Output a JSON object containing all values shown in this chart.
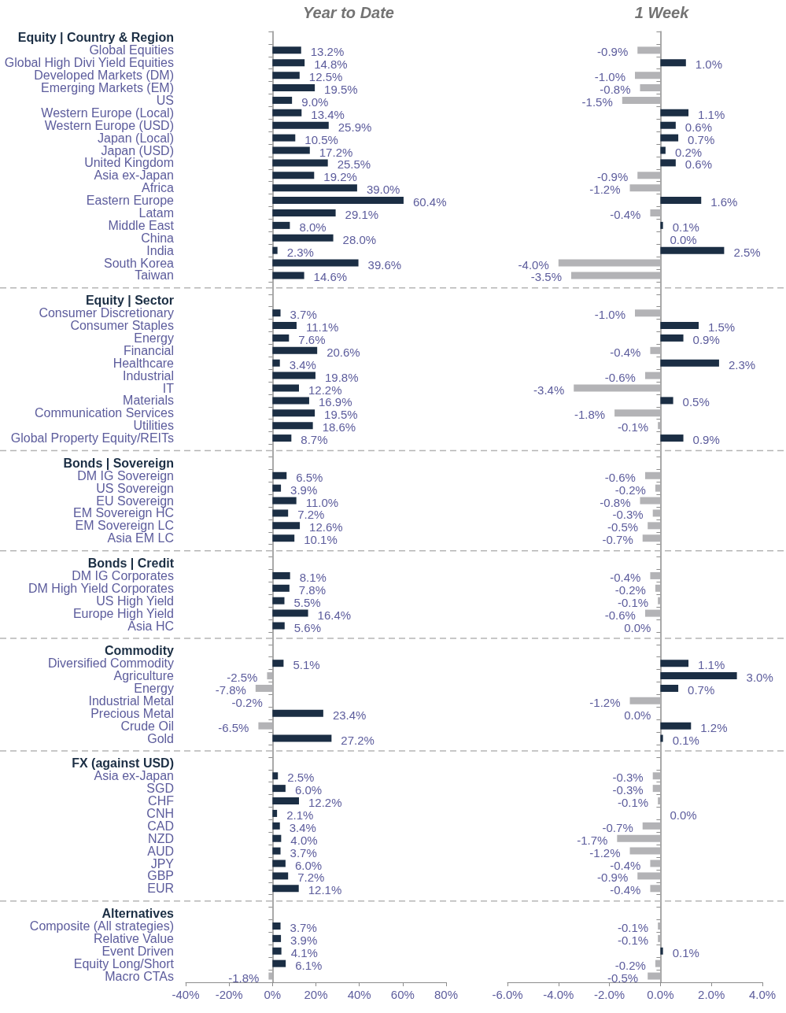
{
  "chart_data": [
    {
      "type": "bar",
      "orientation": "horizontal",
      "title": "Year to Date",
      "categories": [
        "Equity | Country & Region",
        "Global Equities",
        "Global High Divi Yield Equities",
        "Developed Markets (DM)",
        "Emerging Markets (EM)",
        "US",
        "Western Europe (Local)",
        "Western Europe (USD)",
        "Japan (Local)",
        "Japan (USD)",
        "United Kingdom",
        "Asia ex-Japan",
        "Africa",
        "Eastern Europe",
        "Latam",
        "Middle East",
        "China",
        "India",
        "South Korea",
        "Taiwan",
        null,
        "Equity | Sector",
        "Consumer Discretionary",
        "Consumer Staples",
        "Energy",
        "Financial",
        "Healthcare",
        "Industrial",
        "IT",
        "Materials",
        "Communication Services",
        "Utilities",
        "Global Property Equity/REITs",
        null,
        "Bonds | Sovereign",
        "DM IG Sovereign",
        "US Sovereign",
        "EU Sovereign",
        "EM Sovereign HC",
        "EM Sovereign LC",
        "Asia EM LC",
        null,
        "Bonds | Credit",
        "DM IG Corporates",
        "DM High Yield Corporates",
        "US High Yield",
        "Europe High Yield",
        "Asia HC",
        null,
        "Commodity",
        "Diversified Commodity",
        "Agriculture",
        "Energy",
        "Industrial Metal",
        "Precious Metal",
        "Crude Oil",
        "Gold",
        null,
        "FX (against USD)",
        "Asia ex-Japan",
        "SGD",
        "CHF",
        "CNH",
        "CAD",
        "NZD",
        "AUD",
        "JPY",
        "GBP",
        "EUR",
        null,
        "Alternatives",
        "Composite (All strategies)",
        "Relative Value",
        "Event Driven",
        "Equity Long/Short",
        "Macro CTAs"
      ],
      "values": [
        null,
        13.2,
        14.8,
        12.5,
        19.5,
        9.0,
        13.4,
        25.9,
        10.5,
        17.2,
        25.5,
        19.2,
        39.0,
        60.4,
        29.1,
        8.0,
        28.0,
        2.3,
        39.6,
        14.6,
        null,
        null,
        3.7,
        11.1,
        7.6,
        20.6,
        3.4,
        19.8,
        12.2,
        16.9,
        19.5,
        18.6,
        8.7,
        null,
        null,
        6.5,
        3.9,
        11.0,
        7.2,
        12.6,
        10.1,
        null,
        null,
        8.1,
        7.8,
        5.5,
        16.4,
        5.6,
        null,
        null,
        5.1,
        -2.5,
        -7.8,
        -0.2,
        23.4,
        -6.5,
        27.2,
        null,
        null,
        2.5,
        6.0,
        12.2,
        2.1,
        3.4,
        4.0,
        3.7,
        6.0,
        7.2,
        12.1,
        null,
        null,
        3.7,
        3.9,
        4.1,
        6.1,
        -1.8
      ],
      "colors": [
        null,
        "#1b2e44",
        "#1b2e44",
        "#1b2e44",
        "#1b2e44",
        "#1b2e44",
        "#1b2e44",
        "#1b2e44",
        "#1b2e44",
        "#1b2e44",
        "#1b2e44",
        "#1b2e44",
        "#1b2e44",
        "#1b2e44",
        "#1b2e44",
        "#1b2e44",
        "#1b2e44",
        "#1b2e44",
        "#1b2e44",
        "#1b2e44",
        null,
        null,
        "#1b2e44",
        "#1b2e44",
        "#1b2e44",
        "#1b2e44",
        "#1b2e44",
        "#1b2e44",
        "#1b2e44",
        "#1b2e44",
        "#1b2e44",
        "#1b2e44",
        "#1b2e44",
        null,
        null,
        "#1b2e44",
        "#1b2e44",
        "#1b2e44",
        "#1b2e44",
        "#1b2e44",
        "#1b2e44",
        null,
        null,
        "#1b2e44",
        "#1b2e44",
        "#1b2e44",
        "#1b2e44",
        "#1b2e44",
        null,
        null,
        "#1b2e44",
        "#b3b3b6",
        "#b3b3b6",
        "#b3b3b6",
        "#1b2e44",
        "#b3b3b6",
        "#1b2e44",
        null,
        null,
        "#1b2e44",
        "#1b2e44",
        "#1b2e44",
        "#1b2e44",
        "#1b2e44",
        "#1b2e44",
        "#1b2e44",
        "#1b2e44",
        "#1b2e44",
        "#1b2e44",
        null,
        null,
        "#1b2e44",
        "#1b2e44",
        "#1b2e44",
        "#1b2e44",
        "#b3b3b6"
      ],
      "value_labels": [
        null,
        "13.2%",
        "14.8%",
        "12.5%",
        "19.5%",
        "9.0%",
        "13.4%",
        "25.9%",
        "10.5%",
        "17.2%",
        "25.5%",
        "19.2%",
        "39.0%",
        "60.4%",
        "29.1%",
        "8.0%",
        "28.0%",
        "2.3%",
        "39.6%",
        "14.6%",
        null,
        null,
        "3.7%",
        "11.1%",
        "7.6%",
        "20.6%",
        "3.4%",
        "19.8%",
        "12.2%",
        "16.9%",
        "19.5%",
        "18.6%",
        "8.7%",
        null,
        null,
        "6.5%",
        "3.9%",
        "11.0%",
        "7.2%",
        "12.6%",
        "10.1%",
        null,
        null,
        "8.1%",
        "7.8%",
        "5.5%",
        "16.4%",
        "5.6%",
        null,
        null,
        "5.1%",
        "-2.5%",
        "-7.8%",
        "-0.2%",
        "23.4%",
        "-6.5%",
        "27.2%",
        null,
        null,
        "2.5%",
        "6.0%",
        "12.2%",
        "2.1%",
        "3.4%",
        "4.0%",
        "3.7%",
        "6.0%",
        "7.2%",
        "12.1%",
        null,
        null,
        "3.7%",
        "3.9%",
        "4.1%",
        "6.1%",
        "-1.8%"
      ],
      "xlim": [
        -40,
        80
      ],
      "xticks": [
        {
          "value": -40,
          "label": "-40%"
        },
        {
          "value": -20,
          "label": "-20%"
        },
        {
          "value": 0,
          "label": "0%"
        },
        {
          "value": 20,
          "label": "20%"
        },
        {
          "value": 40,
          "label": "40%"
        },
        {
          "value": 60,
          "label": "60%"
        },
        {
          "value": 80,
          "label": "80%"
        }
      ]
    },
    {
      "type": "bar",
      "orientation": "horizontal",
      "title": "1 Week",
      "tick_labels": "x",
      "categories": [
        null,
        null,
        null,
        null,
        null,
        null,
        null,
        null,
        null,
        null,
        null,
        null,
        null,
        null,
        null,
        null,
        null,
        null,
        null,
        null,
        null,
        null,
        null,
        null,
        null,
        null,
        null,
        null,
        null,
        null,
        null,
        null,
        null,
        null,
        null,
        null,
        null,
        null,
        null,
        null,
        null,
        null,
        null,
        null,
        null,
        null,
        null,
        null,
        null,
        null,
        null,
        null,
        null,
        null,
        null,
        null,
        null,
        null,
        null,
        null,
        null,
        null,
        null,
        null,
        null,
        null,
        null,
        null,
        null,
        null,
        null,
        null,
        null,
        null,
        null,
        null
      ],
      "values": [
        null,
        -0.9,
        1.0,
        -1.0,
        -0.8,
        -1.5,
        1.1,
        0.6,
        0.7,
        0.2,
        0.6,
        -0.9,
        -1.2,
        1.6,
        -0.4,
        0.1,
        0.0,
        2.5,
        -4.0,
        -3.5,
        null,
        null,
        -1.0,
        1.5,
        0.9,
        -0.4,
        2.3,
        -0.6,
        -3.4,
        0.5,
        -1.8,
        -0.1,
        0.9,
        null,
        null,
        -0.6,
        -0.2,
        -0.8,
        -0.3,
        -0.5,
        -0.7,
        null,
        null,
        -0.4,
        -0.2,
        -0.1,
        -0.6,
        -0.0,
        null,
        null,
        1.1,
        3.0,
        0.7,
        -1.2,
        -0.0,
        1.2,
        0.1,
        null,
        null,
        -0.3,
        -0.3,
        -0.1,
        0.0,
        -0.7,
        -1.7,
        -1.2,
        -0.4,
        -0.9,
        -0.4,
        null,
        null,
        -0.1,
        -0.1,
        0.1,
        -0.2,
        -0.5
      ],
      "colors": [
        null,
        "#b3b3b6",
        "#1b2e44",
        "#b3b3b6",
        "#b3b3b6",
        "#b3b3b6",
        "#1b2e44",
        "#1b2e44",
        "#1b2e44",
        "#1b2e44",
        "#1b2e44",
        "#b3b3b6",
        "#b3b3b6",
        "#1b2e44",
        "#b3b3b6",
        "#1b2e44",
        "#1b2e44",
        "#1b2e44",
        "#b3b3b6",
        "#b3b3b6",
        null,
        null,
        "#b3b3b6",
        "#1b2e44",
        "#1b2e44",
        "#b3b3b6",
        "#1b2e44",
        "#b3b3b6",
        "#b3b3b6",
        "#1b2e44",
        "#b3b3b6",
        "#b3b3b6",
        "#1b2e44",
        null,
        null,
        "#b3b3b6",
        "#b3b3b6",
        "#b3b3b6",
        "#b3b3b6",
        "#b3b3b6",
        "#b3b3b6",
        null,
        null,
        "#b3b3b6",
        "#b3b3b6",
        "#b3b3b6",
        "#b3b3b6",
        "#b3b3b6",
        null,
        null,
        "#1b2e44",
        "#1b2e44",
        "#1b2e44",
        "#b3b3b6",
        "#b3b3b6",
        "#1b2e44",
        "#1b2e44",
        null,
        null,
        "#b3b3b6",
        "#b3b3b6",
        "#b3b3b6",
        "#1b2e44",
        "#b3b3b6",
        "#b3b3b6",
        "#b3b3b6",
        "#b3b3b6",
        "#b3b3b6",
        "#b3b3b6",
        null,
        null,
        "#b3b3b6",
        "#b3b3b6",
        "#1b2e44",
        "#b3b3b6",
        "#b3b3b6"
      ],
      "value_labels": [
        null,
        "-0.9%",
        "1.0%",
        "-1.0%",
        "-0.8%",
        "-1.5%",
        "1.1%",
        "0.6%",
        "0.7%",
        "0.2%",
        "0.6%",
        "-0.9%",
        "-1.2%",
        "1.6%",
        "-0.4%",
        "0.1%",
        "0.0%",
        "2.5%",
        "-4.0%",
        "-3.5%",
        null,
        null,
        "-1.0%",
        "1.5%",
        "0.9%",
        "-0.4%",
        "2.3%",
        "-0.6%",
        "-3.4%",
        "0.5%",
        "-1.8%",
        "-0.1%",
        "0.9%",
        null,
        null,
        "-0.6%",
        "-0.2%",
        "-0.8%",
        "-0.3%",
        "-0.5%",
        "-0.7%",
        null,
        null,
        "-0.4%",
        "-0.2%",
        "-0.1%",
        "-0.6%",
        "0.0%",
        null,
        null,
        "1.1%",
        "3.0%",
        "0.7%",
        "-1.2%",
        "0.0%",
        "1.2%",
        "0.1%",
        null,
        null,
        "-0.3%",
        "-0.3%",
        "-0.1%",
        "0.0%",
        "-0.7%",
        "-1.7%",
        "-1.2%",
        "-0.4%",
        "-0.9%",
        "-0.4%",
        null,
        null,
        "-0.1%",
        "-0.1%",
        "0.1%",
        "-0.2%",
        "-0.5%"
      ],
      "xlim": [
        -6,
        4
      ],
      "xticks": [
        {
          "value": -6,
          "label": "-6.0%"
        },
        {
          "value": -4,
          "label": "-4.0%"
        },
        {
          "value": -2,
          "label": "-2.0%"
        },
        {
          "value": 0,
          "label": "0.0%"
        },
        {
          "value": 2,
          "label": "2.0%"
        },
        {
          "value": 4,
          "label": "4.0%"
        }
      ]
    }
  ]
}
